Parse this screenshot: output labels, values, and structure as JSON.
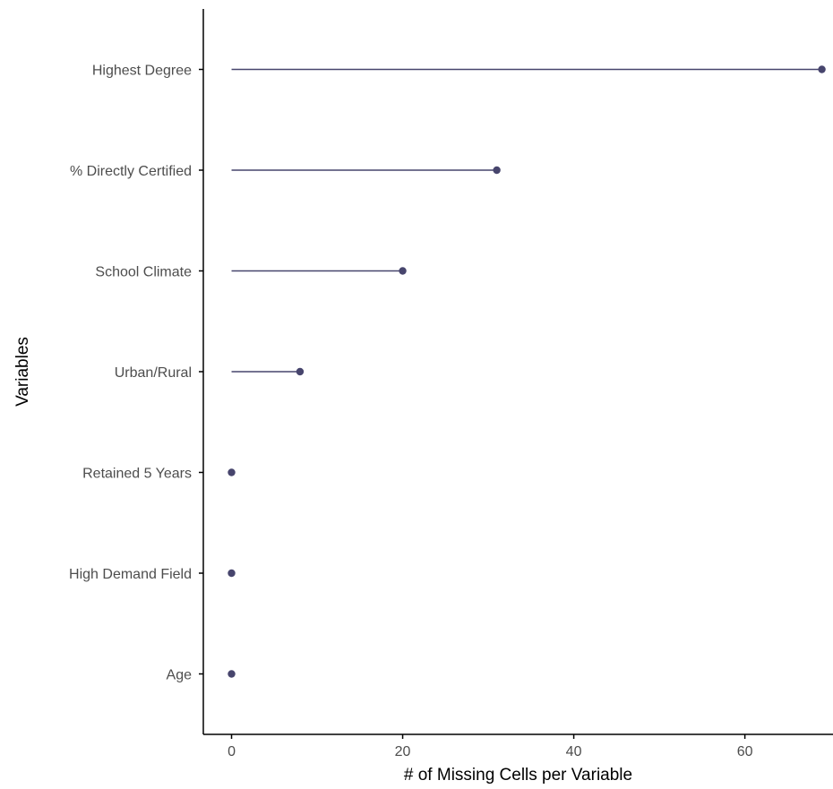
{
  "chart_data": {
    "type": "lollipop",
    "categories": [
      "Highest Degree",
      "% Directly Certified",
      "School Climate",
      "Urban/Rural",
      "Retained 5 Years",
      "High Demand Field",
      "Age"
    ],
    "values": [
      69,
      31,
      20,
      8,
      0,
      0,
      0
    ],
    "title": "",
    "xlabel": "# of Missing Cells per Variable",
    "ylabel": "Variables",
    "xlim": [
      -3.3,
      70.3
    ],
    "xticks": [
      0,
      20,
      40,
      60
    ],
    "orientation": "horizontal",
    "grid": false,
    "legend": "none"
  },
  "colors": {
    "mark": "#47456d",
    "axis": "#000000",
    "tick_text": "#4d4d4d"
  }
}
